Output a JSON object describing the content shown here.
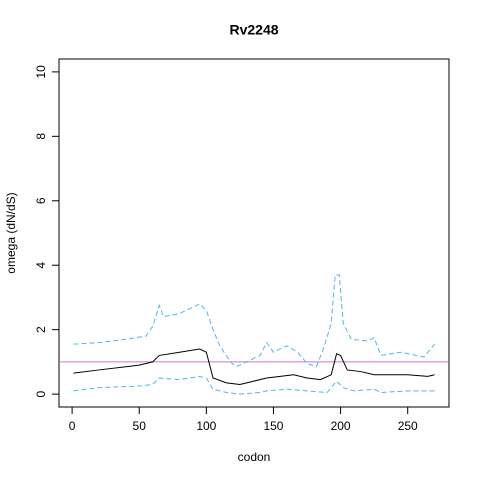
{
  "chart_data": {
    "type": "line",
    "title": "Rv2248",
    "xlabel": "codon",
    "ylabel": "omega (dN/dS)",
    "xlim": [
      -9.76,
      280.76
    ],
    "ylim": [
      -0.4,
      10.4
    ],
    "xticks": [
      0,
      50,
      100,
      150,
      200,
      250
    ],
    "yticks": [
      0,
      2,
      4,
      6,
      8,
      10
    ],
    "hline": {
      "value": 1,
      "color": "#d070d0"
    },
    "series": [
      {
        "name": "mean",
        "color": "#000000",
        "dashed": false,
        "x": [
          1,
          20,
          50,
          60,
          65,
          80,
          95,
          100,
          105,
          115,
          125,
          135,
          145,
          155,
          165,
          175,
          185,
          193,
          197,
          200,
          205,
          215,
          225,
          250,
          265,
          270
        ],
        "values": [
          0.65,
          0.75,
          0.9,
          1.0,
          1.2,
          1.3,
          1.4,
          1.3,
          0.5,
          0.35,
          0.3,
          0.4,
          0.5,
          0.55,
          0.6,
          0.5,
          0.45,
          0.6,
          1.25,
          1.2,
          0.75,
          0.7,
          0.6,
          0.6,
          0.55,
          0.6
        ]
      },
      {
        "name": "upper",
        "color": "#4fb6e8",
        "dashed": true,
        "x": [
          1,
          20,
          40,
          55,
          60,
          65,
          68,
          80,
          90,
          95,
          100,
          105,
          110,
          118,
          122,
          130,
          140,
          145,
          150,
          160,
          168,
          175,
          182,
          188,
          193,
          196,
          199,
          202,
          208,
          220,
          225,
          230,
          245,
          262,
          270
        ],
        "values": [
          1.55,
          1.6,
          1.7,
          1.8,
          2.1,
          2.75,
          2.4,
          2.5,
          2.7,
          2.8,
          2.6,
          2.0,
          1.5,
          1.0,
          0.85,
          1.0,
          1.2,
          1.6,
          1.3,
          1.5,
          1.3,
          0.95,
          0.85,
          1.5,
          2.2,
          3.7,
          3.7,
          2.2,
          1.7,
          1.65,
          1.75,
          1.2,
          1.3,
          1.15,
          1.55
        ]
      },
      {
        "name": "lower",
        "color": "#4fb6e8",
        "dashed": true,
        "x": [
          1,
          20,
          50,
          60,
          65,
          80,
          95,
          100,
          105,
          115,
          125,
          140,
          145,
          160,
          175,
          190,
          197,
          202,
          210,
          225,
          230,
          250,
          270
        ],
        "values": [
          0.1,
          0.2,
          0.25,
          0.3,
          0.5,
          0.45,
          0.55,
          0.5,
          0.15,
          0.05,
          0.0,
          0.05,
          0.1,
          0.15,
          0.1,
          0.05,
          0.4,
          0.2,
          0.1,
          0.15,
          0.05,
          0.1,
          0.1
        ]
      }
    ]
  }
}
